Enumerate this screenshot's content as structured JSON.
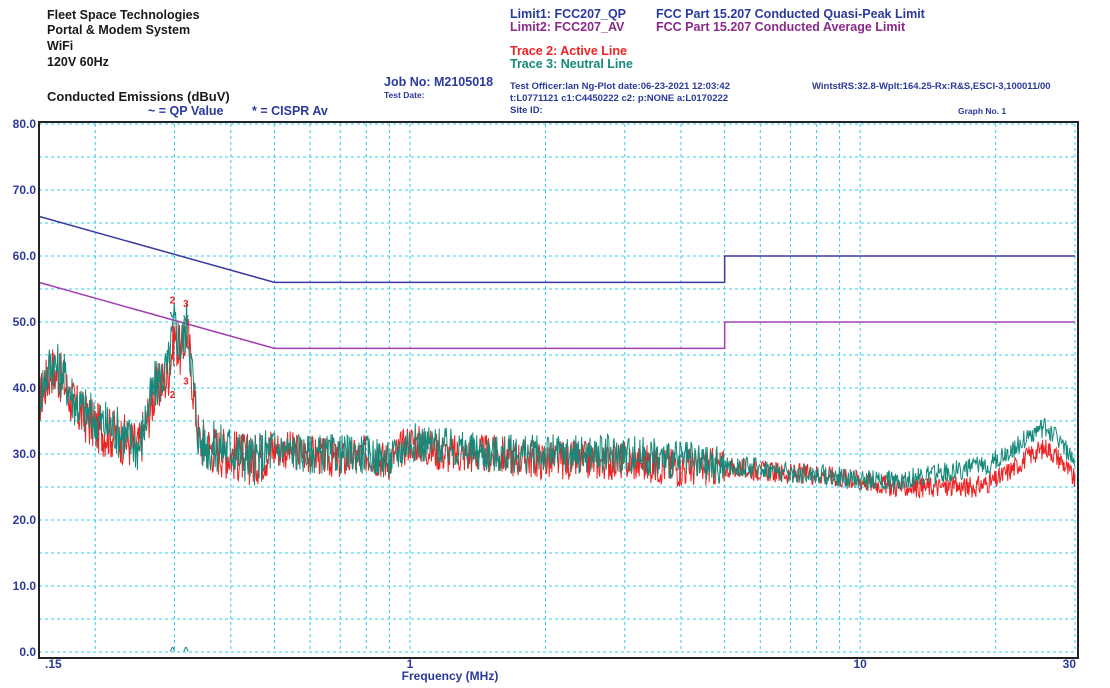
{
  "header": {
    "company": "Fleet Space Technologies",
    "product": "Portal & Modem System",
    "mode": "WiFi",
    "power": "120V 60Hz",
    "measure_title": "Conducted Emissions (dBuV)",
    "legend_qp": "~ = QP Value",
    "legend_av": "* = CISPR Av",
    "job_no": "Job No: M2105018",
    "test_date": "Test Date:",
    "limit1": "Limit1: FCC207_QP",
    "limit1_desc": "FCC Part 15.207 Conducted Quasi-Peak Limit",
    "limit2": "Limit2: FCC207_AV",
    "limit2_desc": "FCC Part 15.207 Conducted Average Limit",
    "trace2": "Trace 2: Active Line",
    "trace3": "Trace 3: Neutral Line",
    "officer_line": "Test Officer:Ian Ng-Plot date:06-23-2021 12:03:42",
    "cal_line": "t:L0771121 c1:C4450222  c2: p:NONE a:L0170222",
    "site": "Site ID:",
    "wintst": "WintstRS:32.8-Wplt:164.25-Rx:R&S,ESCI-3,100011/00",
    "graph_no": "Graph No. 1"
  },
  "colors": {
    "qp_limit": "#3a3aa0",
    "av_limit": "#a040b0",
    "active": "#ee2222",
    "neutral": "#168a7a",
    "grid": "#33ccee",
    "text": "#2a3a9a"
  },
  "chart_data": {
    "type": "line",
    "xscale": "log",
    "xlim": [
      0.15,
      30
    ],
    "ylim": [
      0,
      80
    ],
    "xlabel": "Frequency (MHz)",
    "ylabel": "",
    "x_tick_labels": [
      ".15",
      "1",
      "10",
      "30"
    ],
    "x_tick_values": [
      0.15,
      1,
      10,
      30
    ],
    "y_tick_labels": [
      "0.0",
      "10.0",
      "20.0",
      "30.0",
      "40.0",
      "50.0",
      "60.0",
      "70.0",
      "80.0"
    ],
    "y_tick_values": [
      0,
      10,
      20,
      30,
      40,
      50,
      60,
      70,
      80
    ],
    "grid": true,
    "limits": [
      {
        "name": "FCC207_QP",
        "x": [
          0.15,
          0.5,
          0.5,
          5,
          5,
          30
        ],
        "y": [
          66,
          56,
          56,
          56,
          60,
          60
        ]
      },
      {
        "name": "FCC207_AV",
        "x": [
          0.15,
          0.5,
          0.5,
          5,
          5,
          30
        ],
        "y": [
          56,
          46,
          46,
          46,
          50,
          50
        ]
      }
    ],
    "series": [
      {
        "name": "Trace 2: Active Line",
        "x": [
          0.15,
          0.16,
          0.17,
          0.18,
          0.2,
          0.22,
          0.25,
          0.27,
          0.29,
          0.3,
          0.31,
          0.32,
          0.33,
          0.34,
          0.36,
          0.4,
          0.45,
          0.5,
          0.6,
          0.7,
          0.8,
          0.9,
          1.0,
          1.2,
          1.5,
          2,
          2.5,
          3,
          4,
          5,
          6,
          7,
          8,
          10,
          12,
          15,
          18,
          20,
          22,
          24,
          26,
          28,
          30
        ],
        "y": [
          38,
          43,
          41,
          37,
          34,
          33,
          31,
          39,
          42,
          48,
          45,
          49,
          40,
          32,
          31,
          30,
          29,
          31,
          30,
          29,
          30,
          29,
          32,
          30,
          30,
          29,
          29,
          29,
          28,
          28,
          27.5,
          27,
          27,
          26,
          25,
          25,
          25,
          26,
          28,
          30,
          31,
          29,
          26
        ]
      },
      {
        "name": "Trace 3: Neutral Line",
        "x": [
          0.15,
          0.16,
          0.17,
          0.18,
          0.2,
          0.22,
          0.25,
          0.27,
          0.29,
          0.3,
          0.31,
          0.32,
          0.33,
          0.34,
          0.36,
          0.4,
          0.45,
          0.5,
          0.6,
          0.7,
          0.8,
          0.9,
          1.0,
          1.2,
          1.5,
          2,
          2.5,
          3,
          4,
          5,
          6,
          7,
          8,
          10,
          12,
          15,
          18,
          20,
          22,
          24,
          26,
          28,
          30
        ],
        "y": [
          39,
          44,
          42,
          38,
          35,
          34,
          31,
          40,
          43,
          50,
          46,
          50,
          41,
          32,
          31,
          31,
          29,
          31,
          30,
          30,
          30,
          29,
          32,
          31,
          30,
          30,
          30,
          30,
          29,
          28,
          28,
          27,
          27,
          26,
          26,
          27,
          28,
          29,
          31,
          33,
          34,
          32,
          28
        ]
      }
    ],
    "markers": [
      {
        "label": "2",
        "symbol": "~",
        "x": 0.297,
        "y": 52.8
      },
      {
        "label": "3",
        "symbol": "~",
        "x": 0.318,
        "y": 52.3
      },
      {
        "label": "2",
        "symbol": "*",
        "x": 0.297,
        "y": 38.5
      },
      {
        "label": "3",
        "symbol": "*",
        "x": 0.318,
        "y": 40.5
      }
    ]
  }
}
